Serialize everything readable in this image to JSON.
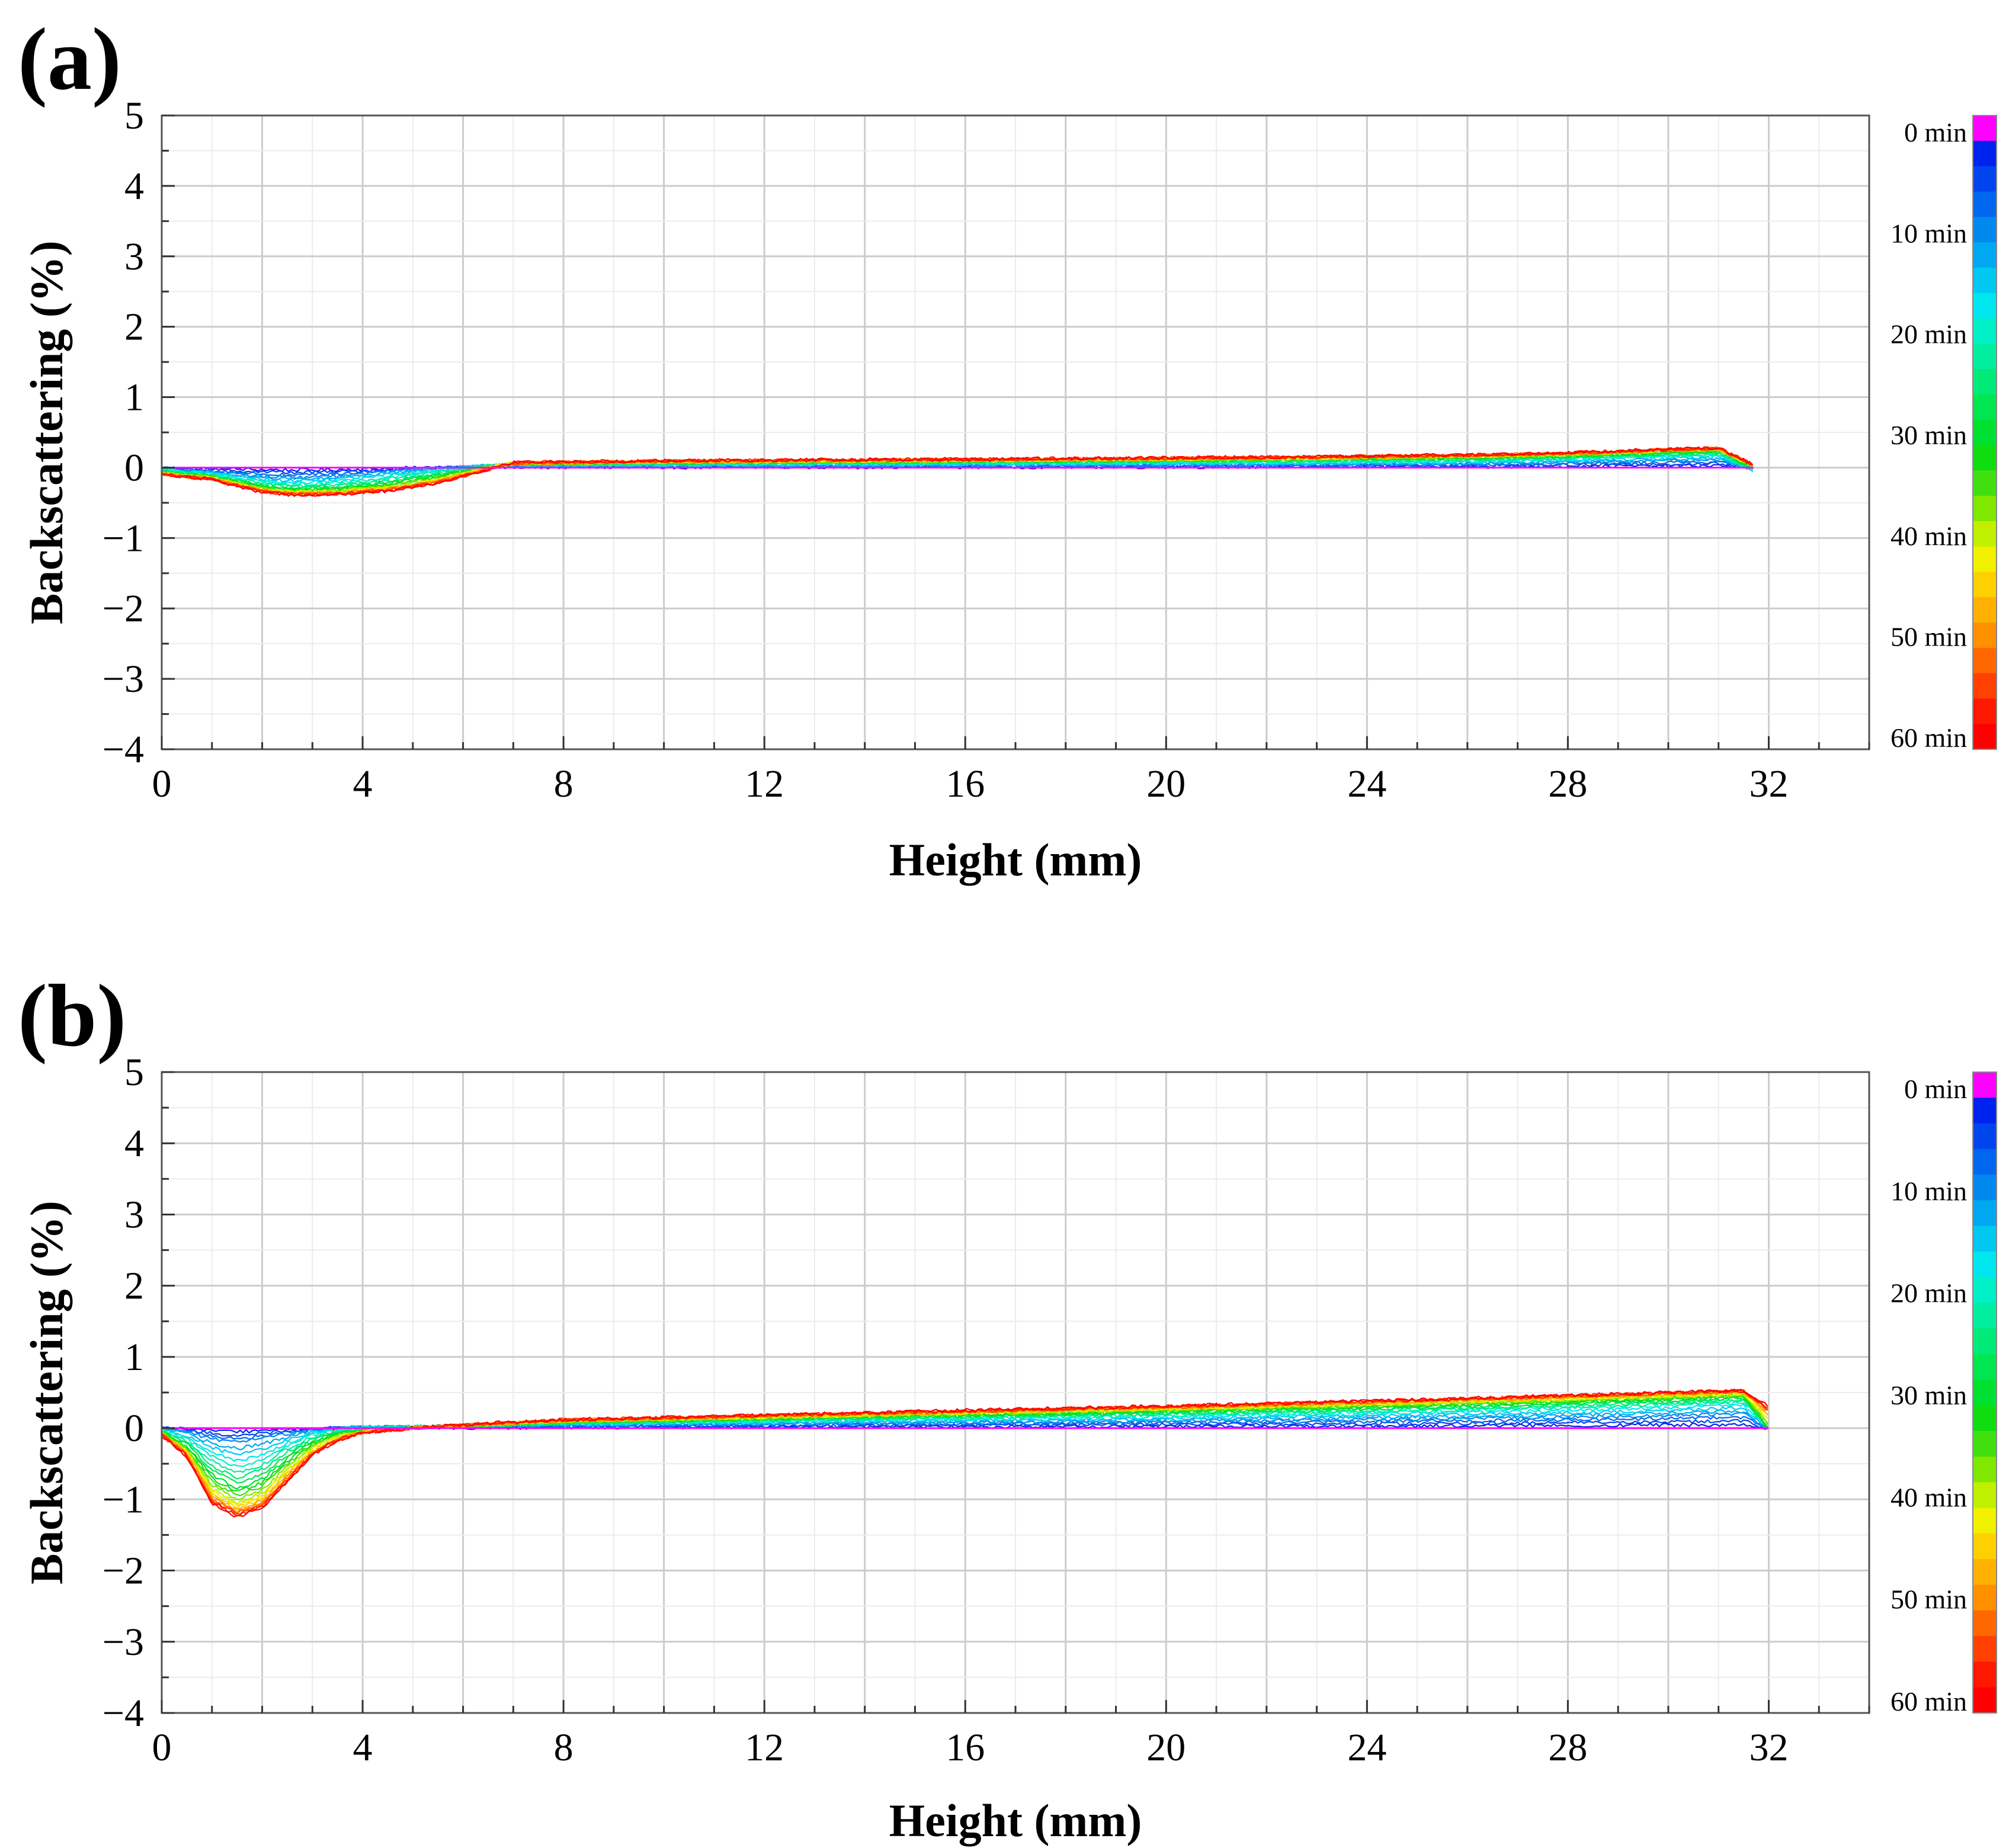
{
  "chart_data": [
    {
      "type": "line",
      "panel_label": "(a)",
      "xlabel": "Height (mm)",
      "ylabel": "Backscattering (%)",
      "xlim": [
        0,
        34
      ],
      "ylim": [
        -4,
        5
      ],
      "xticks": [
        0,
        4,
        8,
        12,
        16,
        20,
        24,
        28,
        32
      ],
      "yticks": [
        -4,
        -3,
        -2,
        -1,
        0,
        1,
        2,
        3,
        4,
        5
      ],
      "grid": true,
      "x_end": 31.7,
      "legend": {
        "type": "colorbar",
        "position": "right",
        "labels": [
          "0 min",
          "10 min",
          "20 min",
          "30 min",
          "40 min",
          "50 min",
          "60 min"
        ]
      },
      "series": [
        {
          "name": "0 min",
          "x": [
            0,
            31.7
          ],
          "y": [
            0,
            0
          ]
        },
        {
          "name": "10 min",
          "x": [
            0,
            1,
            2,
            2.6,
            3.5,
            4.5,
            5.5,
            6.5,
            7,
            10,
            16,
            22,
            26,
            28,
            30,
            31,
            31.7
          ],
          "y": [
            -0.02,
            -0.06,
            -0.12,
            -0.14,
            -0.12,
            -0.05,
            0.0,
            0.02,
            0.02,
            0.02,
            0.03,
            0.04,
            0.05,
            0.07,
            0.1,
            0.11,
            -0.02
          ]
        },
        {
          "name": "20 min",
          "x": [
            0,
            1,
            2,
            2.6,
            3.5,
            4.5,
            5.5,
            6.5,
            7,
            10,
            16,
            22,
            26,
            28,
            30,
            31,
            31.7
          ],
          "y": [
            -0.04,
            -0.1,
            -0.2,
            -0.24,
            -0.22,
            -0.14,
            -0.05,
            0.03,
            0.04,
            0.05,
            0.06,
            0.08,
            0.1,
            0.13,
            0.17,
            0.19,
            -0.05
          ]
        },
        {
          "name": "30 min",
          "x": [
            0,
            1,
            2,
            2.6,
            3.5,
            4.5,
            5.5,
            6.5,
            7,
            10,
            16,
            22,
            26,
            28,
            30,
            31,
            31.7
          ],
          "y": [
            -0.06,
            -0.13,
            -0.27,
            -0.31,
            -0.3,
            -0.23,
            -0.12,
            0.02,
            0.05,
            0.07,
            0.09,
            0.11,
            0.14,
            0.16,
            0.21,
            0.23,
            0.0
          ]
        },
        {
          "name": "40 min",
          "x": [
            0,
            1,
            2,
            2.6,
            3.5,
            4.5,
            5.5,
            6.5,
            7,
            10,
            16,
            22,
            26,
            28,
            30,
            31,
            31.7
          ],
          "y": [
            -0.08,
            -0.15,
            -0.31,
            -0.35,
            -0.34,
            -0.28,
            -0.17,
            0.0,
            0.06,
            0.08,
            0.1,
            0.13,
            0.16,
            0.19,
            0.24,
            0.26,
            0.02
          ]
        },
        {
          "name": "50 min",
          "x": [
            0,
            1,
            2,
            2.6,
            3.5,
            4.5,
            5.5,
            6.5,
            7,
            10,
            16,
            22,
            26,
            28,
            30,
            31,
            31.7
          ],
          "y": [
            -0.09,
            -0.16,
            -0.33,
            -0.37,
            -0.36,
            -0.31,
            -0.2,
            -0.02,
            0.06,
            0.09,
            0.11,
            0.14,
            0.17,
            0.2,
            0.25,
            0.27,
            0.03
          ]
        },
        {
          "name": "60 min",
          "x": [
            0,
            1,
            2,
            2.6,
            3.5,
            4.5,
            5.5,
            6.5,
            7,
            10,
            16,
            22,
            26,
            28,
            30,
            31,
            31.7
          ],
          "y": [
            -0.1,
            -0.17,
            -0.35,
            -0.39,
            -0.38,
            -0.33,
            -0.22,
            -0.03,
            0.07,
            0.1,
            0.12,
            0.15,
            0.18,
            0.21,
            0.26,
            0.28,
            0.04
          ]
        }
      ]
    },
    {
      "type": "line",
      "panel_label": "(b)",
      "xlabel": "Height (mm)",
      "ylabel": "Backscattering (%)",
      "xlim": [
        0,
        34
      ],
      "ylim": [
        -4,
        5
      ],
      "xticks": [
        0,
        4,
        8,
        12,
        16,
        20,
        24,
        28,
        32
      ],
      "yticks": [
        -4,
        -3,
        -2,
        -1,
        0,
        1,
        2,
        3,
        4,
        5
      ],
      "grid": true,
      "x_end": 32.0,
      "legend": {
        "type": "colorbar",
        "position": "right",
        "labels": [
          "0 min",
          "10 min",
          "20 min",
          "30 min",
          "40 min",
          "50 min",
          "60 min"
        ]
      },
      "series": [
        {
          "name": "0 min",
          "x": [
            0,
            32
          ],
          "y": [
            0,
            0
          ]
        },
        {
          "name": "10 min",
          "x": [
            0,
            0.5,
            1,
            1.5,
            2,
            2.5,
            3,
            3.5,
            4,
            5,
            6,
            8,
            12,
            16,
            20,
            24,
            28,
            30,
            31.5,
            32
          ],
          "y": [
            0.0,
            -0.05,
            -0.15,
            -0.2,
            -0.15,
            -0.08,
            -0.03,
            0.0,
            0.02,
            0.02,
            0.02,
            0.04,
            0.06,
            0.08,
            0.1,
            0.12,
            0.15,
            0.18,
            0.2,
            -0.02
          ]
        },
        {
          "name": "20 min",
          "x": [
            0,
            0.5,
            1,
            1.5,
            2,
            2.5,
            3,
            3.5,
            4,
            5,
            6,
            8,
            12,
            16,
            20,
            24,
            28,
            30,
            31.5,
            32
          ],
          "y": [
            -0.03,
            -0.15,
            -0.4,
            -0.55,
            -0.45,
            -0.25,
            -0.1,
            -0.03,
            0.0,
            0.02,
            0.03,
            0.07,
            0.1,
            0.14,
            0.18,
            0.22,
            0.28,
            0.32,
            0.36,
            0.0
          ]
        },
        {
          "name": "30 min",
          "x": [
            0,
            0.5,
            1,
            1.5,
            2,
            2.5,
            3,
            3.5,
            4,
            5,
            6,
            8,
            12,
            16,
            20,
            24,
            28,
            30,
            31.5,
            32
          ],
          "y": [
            -0.05,
            -0.25,
            -0.65,
            -0.85,
            -0.72,
            -0.42,
            -0.2,
            -0.08,
            -0.03,
            0.0,
            0.03,
            0.08,
            0.13,
            0.18,
            0.23,
            0.29,
            0.36,
            0.4,
            0.44,
            -0.02
          ]
        },
        {
          "name": "40 min",
          "x": [
            0,
            0.5,
            1,
            1.5,
            2,
            2.5,
            3,
            3.5,
            4,
            5,
            6,
            8,
            12,
            16,
            20,
            24,
            28,
            30,
            31.5,
            32
          ],
          "y": [
            -0.07,
            -0.32,
            -0.85,
            -1.05,
            -0.92,
            -0.58,
            -0.28,
            -0.12,
            -0.05,
            0.0,
            0.04,
            0.1,
            0.15,
            0.21,
            0.27,
            0.33,
            0.41,
            0.45,
            0.48,
            0.1
          ]
        },
        {
          "name": "50 min",
          "x": [
            0,
            0.5,
            1,
            1.5,
            2,
            2.5,
            3,
            3.5,
            4,
            5,
            6,
            8,
            12,
            16,
            20,
            24,
            28,
            30,
            31.5,
            32
          ],
          "y": [
            -0.08,
            -0.36,
            -0.98,
            -1.17,
            -1.05,
            -0.68,
            -0.34,
            -0.15,
            -0.06,
            0.0,
            0.04,
            0.11,
            0.17,
            0.23,
            0.29,
            0.36,
            0.44,
            0.48,
            0.51,
            0.22
          ]
        },
        {
          "name": "60 min",
          "x": [
            0,
            0.5,
            1,
            1.5,
            2,
            2.5,
            3,
            3.5,
            4,
            5,
            6,
            8,
            12,
            16,
            20,
            24,
            28,
            30,
            31.5,
            32
          ],
          "y": [
            -0.1,
            -0.4,
            -1.05,
            -1.25,
            -1.12,
            -0.75,
            -0.38,
            -0.17,
            -0.07,
            0.0,
            0.05,
            0.12,
            0.18,
            0.25,
            0.31,
            0.38,
            0.46,
            0.5,
            0.53,
            0.3
          ]
        }
      ]
    }
  ],
  "colorbar_colors": [
    "#ff00ff",
    "#0022ee",
    "#0044ee",
    "#0066ee",
    "#0088ee",
    "#00a8f0",
    "#00c8f0",
    "#00e6ee",
    "#00f0c8",
    "#00eea0",
    "#00ea78",
    "#00e650",
    "#00e030",
    "#10dd10",
    "#40e010",
    "#80e800",
    "#c0f000",
    "#f0f000",
    "#ffd000",
    "#ffb000",
    "#ff9000",
    "#ff6800",
    "#ff4000",
    "#ff1800",
    "#ff0000"
  ],
  "series_colors": {
    "0 min": "#ff00ff",
    "10 min": "#1040f0",
    "20 min": "#00c8f0",
    "30 min": "#00e678",
    "40 min": "#40e010",
    "50 min": "#ffb000",
    "60 min": "#ff1000"
  }
}
